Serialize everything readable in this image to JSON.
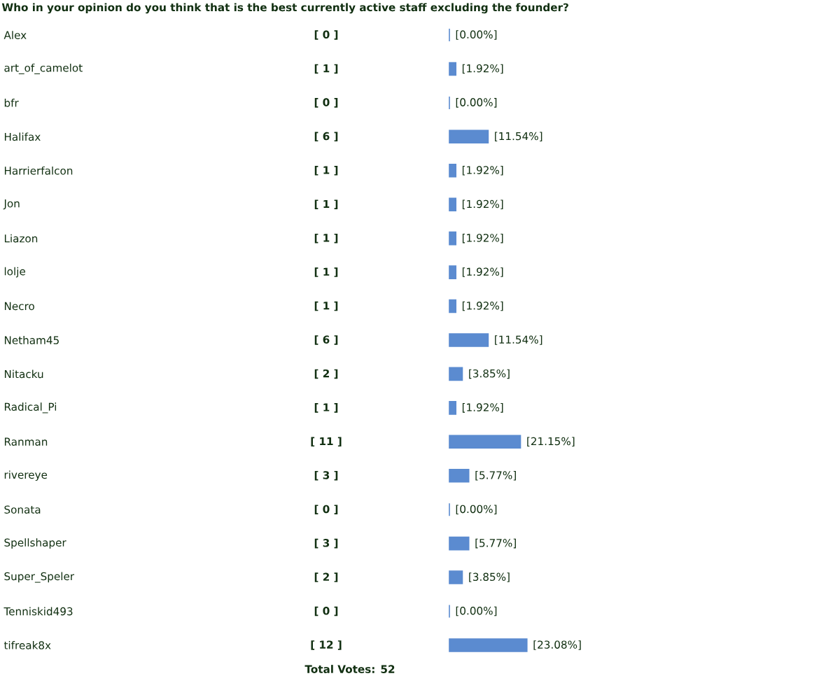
{
  "chart_data": {
    "type": "bar",
    "orientation": "horizontal",
    "title": "Who in your opinion do you think that is the best currently active staff excluding the founder?",
    "categories": [
      "Alex",
      "art_of_camelot",
      "bfr",
      "Halifax",
      "Harrierfalcon",
      "Jon",
      "Liazon",
      "lolje",
      "Necro",
      "Netham45",
      "Nitacku",
      "Radical_Pi",
      "Ranman",
      "rivereye",
      "Sonata",
      "Spellshaper",
      "Super_Speler",
      "Tenniskid493",
      "tifreak8x"
    ],
    "values": [
      0,
      1.92,
      0,
      11.54,
      1.92,
      1.92,
      1.92,
      1.92,
      1.92,
      11.54,
      3.85,
      1.92,
      21.15,
      5.77,
      0,
      5.77,
      3.85,
      0,
      23.08
    ],
    "value_labels": [
      "[0.00%]",
      "[1.92%]",
      "[0.00%]",
      "[11.54%]",
      "[1.92%]",
      "[1.92%]",
      "[1.92%]",
      "[1.92%]",
      "[1.92%]",
      "[11.54%]",
      "[3.85%]",
      "[1.92%]",
      "[21.15%]",
      "[5.77%]",
      "[0.00%]",
      "[5.77%]",
      "[3.85%]",
      "[0.00%]",
      "[23.08%]"
    ],
    "color": "#5b8bd0",
    "annotations": [
      "[ 0 ]",
      "[ 1 ]",
      "[ 0 ]",
      "[ 6 ]",
      "[ 1 ]",
      "[ 1 ]",
      "[ 1 ]",
      "[ 1 ]",
      "[ 1 ]",
      "[ 6 ]",
      "[ 2 ]",
      "[ 1 ]",
      "[ 11 ]",
      "[ 3 ]",
      "[ 0 ]",
      "[ 3 ]",
      "[ 2 ]",
      "[ 0 ]",
      "[ 12 ]",
      "Total Votes: 52"
    ]
  }
}
